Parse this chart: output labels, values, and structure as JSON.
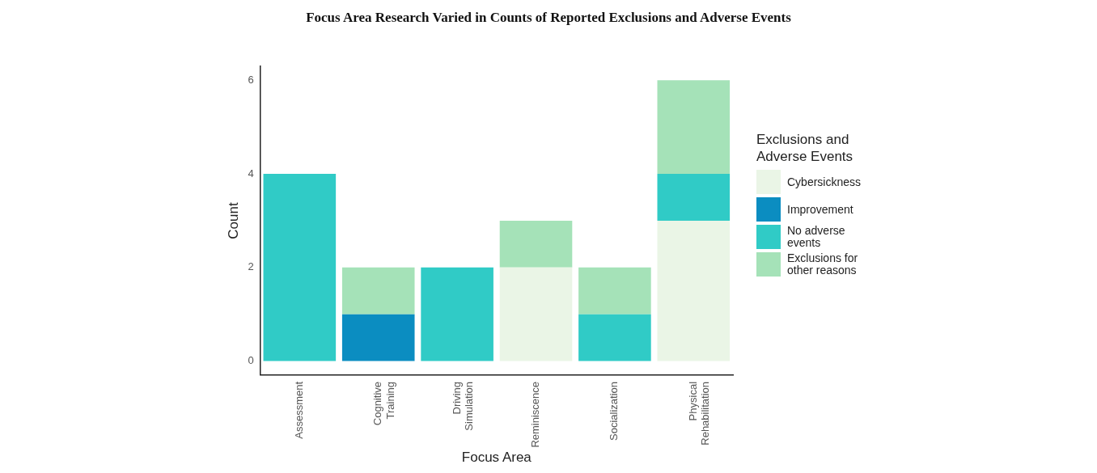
{
  "chart_data": {
    "type": "bar",
    "title": "Focus Area Research Varied in Counts of Reported Exclusions and Adverse Events",
    "xlabel": "Focus Area",
    "ylabel": "Count",
    "legend_title": "Exclusions and Adverse Events",
    "categories": [
      "Assessment",
      "Cognitive Training",
      "Driving Simulation",
      "Reminiscence",
      "Socialization",
      "Physical Rehabilitation"
    ],
    "stacked": true,
    "ylim": [
      -0.3,
      6.3
    ],
    "yticks": [
      0,
      2,
      4,
      6
    ],
    "grid": false,
    "legend": "right",
    "series": [
      {
        "name": "Cybersickness",
        "color": "#eaf5e6",
        "values": [
          0,
          0,
          0,
          2,
          0,
          3
        ]
      },
      {
        "name": "Improvement",
        "color": "#0b8dc1",
        "values": [
          0,
          1,
          0,
          0,
          0,
          0
        ]
      },
      {
        "name": "No adverse events",
        "color": "#30cbc6",
        "values": [
          4,
          0,
          2,
          0,
          1,
          1
        ]
      },
      {
        "name": "Exclusions for other reasons",
        "color": "#a5e2b8",
        "values": [
          0,
          1,
          0,
          1,
          1,
          2
        ]
      }
    ]
  }
}
